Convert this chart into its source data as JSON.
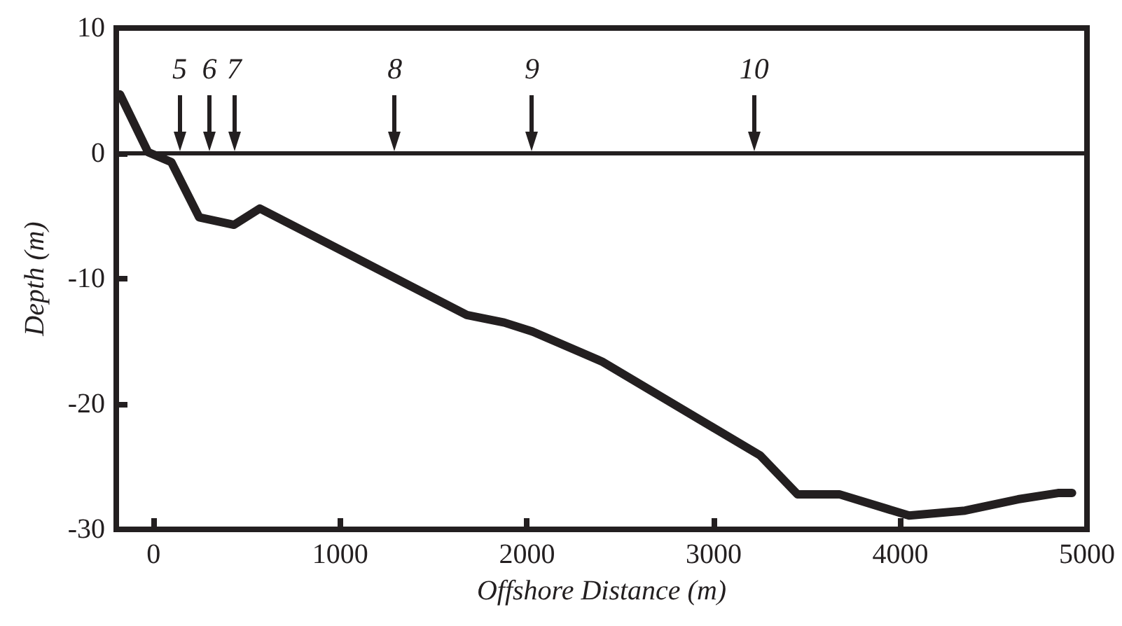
{
  "chart_data": {
    "type": "line",
    "xlabel": "Offshore Distance (m)",
    "ylabel": "Depth (m)",
    "x": [
      -180,
      -30,
      95,
      244,
      431,
      569,
      1678,
      1878,
      2027,
      2401,
      3249,
      3449,
      3673,
      4047,
      4347,
      4631,
      4845,
      4920
    ],
    "series": [
      {
        "color": "#231f20",
        "values": [
          4.7,
          0.1,
          -0.7,
          -5.1,
          -5.7,
          -4.4,
          -12.9,
          -13.5,
          -14.2,
          -16.6,
          -24.1,
          -27.2,
          -27.2,
          -28.9,
          -28.5,
          -27.6,
          -27.1,
          -27.1
        ]
      }
    ],
    "xlim": [
      -200,
      5000
    ],
    "xticks": [
      0,
      1000,
      2000,
      3000,
      4000,
      5000
    ],
    "ylim": [
      -30,
      10
    ],
    "yticks": [
      -30,
      -20,
      -10,
      0,
      10
    ],
    "ref_lines": [
      {
        "axis": "y",
        "value": 0,
        "color": "#231f20"
      }
    ],
    "annotations": [
      {
        "text": "5",
        "x": 140,
        "y": 0
      },
      {
        "text": "6",
        "x": 299,
        "y": 0
      },
      {
        "text": "7",
        "x": 431,
        "y": 0
      },
      {
        "text": "8",
        "x": 1292,
        "y": 0
      },
      {
        "text": "9",
        "x": 2027,
        "y": 0
      },
      {
        "text": "10",
        "x": 3217,
        "y": 0
      }
    ],
    "grid": false,
    "marker": "none",
    "line_style": "solid"
  }
}
